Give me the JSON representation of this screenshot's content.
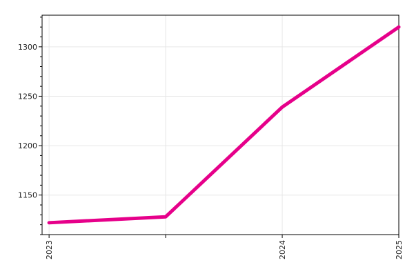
{
  "chart_data": {
    "type": "line",
    "title": "",
    "xlabel": "",
    "ylabel": "",
    "x": [
      2023,
      2023.5,
      2024,
      2024.5
    ],
    "x_tick_values": [
      2023,
      2023.5,
      2024,
      2024.5
    ],
    "x_tick_labels": [
      "2023",
      "",
      "2024",
      "2025"
    ],
    "y_ticks": [
      1150,
      1200,
      1250,
      1300
    ],
    "y_tick_labels": [
      "1150",
      "1200",
      "1250",
      "1300"
    ],
    "xlim": [
      2022.97,
      2024.5
    ],
    "ylim": [
      1110,
      1332
    ],
    "grid": true,
    "legend": "none",
    "series": [
      {
        "values": [
          1122,
          1128,
          1239,
          1320
        ],
        "color": "#e6008a"
      }
    ]
  }
}
